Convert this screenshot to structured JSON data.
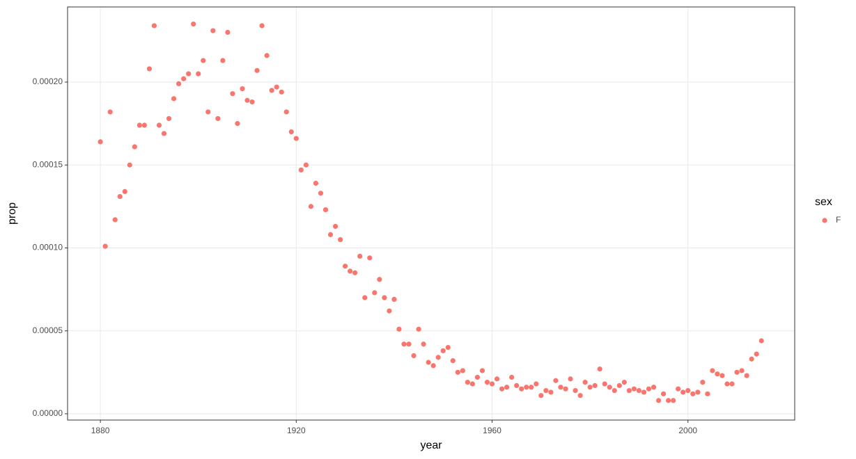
{
  "chart_data": {
    "type": "scatter",
    "x_label": "year",
    "y_label": "prop",
    "legend_title": "sex",
    "legend_position": "right",
    "grid": true,
    "series": [
      {
        "name": "F",
        "color": "#F8766D",
        "x": [
          1880,
          1881,
          1882,
          1883,
          1884,
          1885,
          1886,
          1887,
          1888,
          1889,
          1890,
          1891,
          1892,
          1893,
          1894,
          1895,
          1896,
          1897,
          1898,
          1899,
          1900,
          1901,
          1902,
          1903,
          1904,
          1905,
          1906,
          1907,
          1908,
          1909,
          1910,
          1911,
          1912,
          1913,
          1914,
          1915,
          1916,
          1917,
          1918,
          1919,
          1920,
          1921,
          1922,
          1923,
          1924,
          1925,
          1926,
          1927,
          1928,
          1929,
          1930,
          1931,
          1932,
          1933,
          1934,
          1935,
          1936,
          1937,
          1938,
          1939,
          1940,
          1941,
          1942,
          1943,
          1944,
          1945,
          1946,
          1947,
          1948,
          1949,
          1950,
          1951,
          1952,
          1953,
          1954,
          1955,
          1956,
          1957,
          1958,
          1959,
          1960,
          1961,
          1962,
          1963,
          1964,
          1965,
          1966,
          1967,
          1968,
          1969,
          1970,
          1971,
          1972,
          1973,
          1974,
          1975,
          1976,
          1977,
          1978,
          1979,
          1980,
          1981,
          1982,
          1983,
          1984,
          1985,
          1986,
          1987,
          1988,
          1989,
          1990,
          1991,
          1992,
          1993,
          1994,
          1995,
          1996,
          1997,
          1998,
          1999,
          2000,
          2001,
          2002,
          2003,
          2004,
          2005,
          2006,
          2007,
          2008,
          2009,
          2010,
          2011,
          2012,
          2013,
          2014,
          2015
        ],
        "values": [
          0.000164,
          0.000101,
          0.000182,
          0.000117,
          0.000131,
          0.000134,
          0.00015,
          0.000161,
          0.000174,
          0.000174,
          0.000208,
          0.000234,
          0.000174,
          0.000169,
          0.000178,
          0.00019,
          0.000199,
          0.000202,
          0.000205,
          0.000235,
          0.000205,
          0.000213,
          0.000182,
          0.000231,
          0.000178,
          0.000213,
          0.00023,
          0.000193,
          0.000175,
          0.000196,
          0.000189,
          0.000188,
          0.000207,
          0.000234,
          0.000216,
          0.000195,
          0.000197,
          0.000194,
          0.000182,
          0.00017,
          0.000166,
          0.000147,
          0.00015,
          0.000125,
          0.000139,
          0.000133,
          0.000123,
          0.000108,
          0.000113,
          0.000105,
          8.9e-05,
          8.6e-05,
          8.5e-05,
          9.5e-05,
          7e-05,
          9.4e-05,
          7.3e-05,
          8.1e-05,
          7e-05,
          6.2e-05,
          6.9e-05,
          5.1e-05,
          4.2e-05,
          4.2e-05,
          3.5e-05,
          5.1e-05,
          4.2e-05,
          3.1e-05,
          2.9e-05,
          3.4e-05,
          3.8e-05,
          4e-05,
          3.2e-05,
          2.5e-05,
          2.6e-05,
          1.9e-05,
          1.8e-05,
          2.2e-05,
          2.6e-05,
          1.9e-05,
          1.8e-05,
          2.1e-05,
          1.5e-05,
          1.6e-05,
          2.2e-05,
          1.7e-05,
          1.5e-05,
          1.6e-05,
          1.6e-05,
          1.8e-05,
          1.1e-05,
          1.4e-05,
          1.3e-05,
          2e-05,
          1.6e-05,
          1.5e-05,
          2.1e-05,
          1.4e-05,
          1.1e-05,
          1.9e-05,
          1.6e-05,
          1.7e-05,
          2.7e-05,
          1.8e-05,
          1.6e-05,
          1.4e-05,
          1.7e-05,
          1.9e-05,
          1.4e-05,
          1.5e-05,
          1.4e-05,
          1.3e-05,
          1.5e-05,
          1.6e-05,
          8e-06,
          1.2e-05,
          8e-06,
          8e-06,
          1.5e-05,
          1.3e-05,
          1.4e-05,
          1.2e-05,
          1.3e-05,
          1.9e-05,
          1.2e-05,
          2.6e-05,
          2.4e-05,
          2.3e-05,
          1.8e-05,
          1.8e-05,
          2.5e-05,
          2.6e-05,
          2.3e-05,
          3.3e-05,
          3.6e-05,
          4.4e-05
        ]
      }
    ],
    "xlim": [
      1873.3,
      2021.8
    ],
    "ylim": [
      -3.8e-06,
      0.0002453
    ],
    "xticks": [
      1880,
      1920,
      1960,
      2000
    ],
    "yticks": [
      {
        "value": 0,
        "label": "0.00000"
      },
      {
        "value": 5e-05,
        "label": "0.00005"
      },
      {
        "value": 0.0001,
        "label": "0.00010"
      },
      {
        "value": 0.00015,
        "label": "0.00015"
      },
      {
        "value": 0.0002,
        "label": "0.00020"
      }
    ]
  }
}
